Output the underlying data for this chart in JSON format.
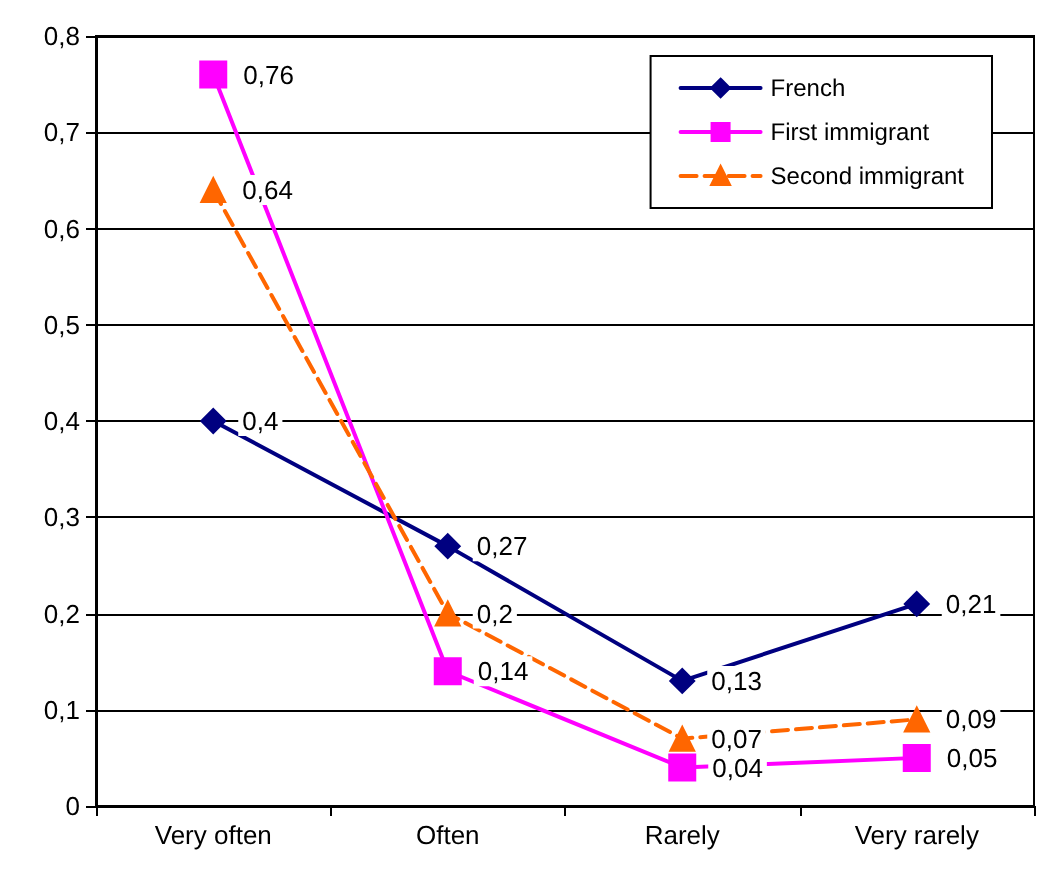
{
  "chart_data": {
    "type": "line",
    "categories": [
      "Very often",
      "Often",
      "Rarely",
      "Very rarely"
    ],
    "series": [
      {
        "name": "French",
        "color": "#000080",
        "marker": "diamond",
        "line_style": "solid",
        "values": [
          0.4,
          0.27,
          0.13,
          0.21
        ],
        "value_labels": [
          "0,4",
          "0,27",
          "0,13",
          "0,21"
        ]
      },
      {
        "name": "First immigrant",
        "color": "#ff00ff",
        "marker": "square",
        "line_style": "solid",
        "values": [
          0.76,
          0.14,
          0.04,
          0.05
        ],
        "value_labels": [
          "0,76",
          "0,14",
          "0,04",
          "0,05"
        ]
      },
      {
        "name": "Second immigrant",
        "color": "#ff6600",
        "marker": "triangle",
        "line_style": "dashed",
        "values": [
          0.64,
          0.2,
          0.07,
          0.09
        ],
        "value_labels": [
          "0,64",
          "0,2",
          "0,07",
          "0,09"
        ]
      }
    ],
    "ylim": [
      0,
      0.8
    ],
    "yticks": [
      {
        "value": 0,
        "label": "0"
      },
      {
        "value": 0.1,
        "label": "0,1"
      },
      {
        "value": 0.2,
        "label": "0,2"
      },
      {
        "value": 0.3,
        "label": "0,3"
      },
      {
        "value": 0.4,
        "label": "0,4"
      },
      {
        "value": 0.5,
        "label": "0,5"
      },
      {
        "value": 0.6,
        "label": "0,6"
      },
      {
        "value": 0.7,
        "label": "0,7"
      },
      {
        "value": 0.8,
        "label": "0,8"
      }
    ],
    "grid": "y",
    "legend": "top right"
  }
}
